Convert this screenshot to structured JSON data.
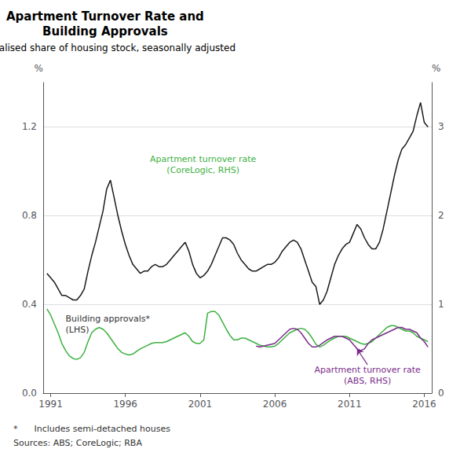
{
  "chart_data": {
    "type": "line",
    "title": "Apartment Turnover Rate and\nBuilding Approvals",
    "subtitle": "Annualised share of housing stock, seasonally adjusted",
    "footnote": "*      Includes semi-detached houses",
    "sources": "Sources: ABS; CoreLogic; RBA",
    "y_label": "%",
    "y2_label": "%",
    "xlim": [
      1990.5,
      2016.5
    ],
    "xticks": [
      1991,
      1996,
      2001,
      2006,
      2011,
      2016
    ],
    "ylim": [
      0.0,
      1.4
    ],
    "yticks": [
      {
        "value": 0.0,
        "label": "0.0"
      },
      0.4,
      0.8,
      1.2
    ],
    "y2lim": [
      0,
      3.5
    ],
    "y2ticks": [
      0,
      1,
      2,
      3
    ],
    "grid": true,
    "series": [
      {
        "color": "#1a1a1a",
        "axis": "y",
        "x": [
          1990.75,
          1991.0,
          1991.25,
          1991.5,
          1991.75,
          1992.0,
          1992.25,
          1992.5,
          1992.75,
          1993.0,
          1993.25,
          1993.5,
          1993.75,
          1994.0,
          1994.25,
          1994.5,
          1994.75,
          1995.0,
          1995.25,
          1995.5,
          1995.75,
          1996.0,
          1996.25,
          1996.5,
          1996.75,
          1997.0,
          1997.25,
          1997.5,
          1997.75,
          1998.0,
          1998.25,
          1998.5,
          1998.75,
          1999.0,
          1999.25,
          1999.5,
          1999.75,
          2000.0,
          2000.25,
          2000.5,
          2000.75,
          2001.0,
          2001.25,
          2001.5,
          2001.75,
          2002.0,
          2002.25,
          2002.5,
          2002.75,
          2003.0,
          2003.25,
          2003.5,
          2003.75,
          2004.0,
          2004.25,
          2004.5,
          2004.75,
          2005.0,
          2005.25,
          2005.5,
          2005.75,
          2006.0,
          2006.25,
          2006.5,
          2006.75,
          2007.0,
          2007.25,
          2007.5,
          2007.75,
          2008.0,
          2008.25,
          2008.5,
          2008.75,
          2009.0,
          2009.25,
          2009.5,
          2009.75,
          2010.0,
          2010.25,
          2010.5,
          2010.75,
          2011.0,
          2011.25,
          2011.5,
          2011.75,
          2012.0,
          2012.25,
          2012.5,
          2012.75,
          2013.0,
          2013.25,
          2013.5,
          2013.75,
          2014.0,
          2014.25,
          2014.5,
          2014.75,
          2015.0,
          2015.25,
          2015.5,
          2015.75,
          2016.0,
          2016.25
        ],
        "values": [
          0.54,
          0.52,
          0.5,
          0.47,
          0.44,
          0.44,
          0.43,
          0.42,
          0.42,
          0.44,
          0.47,
          0.55,
          0.62,
          0.68,
          0.75,
          0.82,
          0.92,
          0.96,
          0.88,
          0.8,
          0.73,
          0.67,
          0.62,
          0.58,
          0.56,
          0.54,
          0.55,
          0.55,
          0.57,
          0.58,
          0.57,
          0.57,
          0.58,
          0.6,
          0.62,
          0.64,
          0.66,
          0.68,
          0.64,
          0.58,
          0.54,
          0.52,
          0.53,
          0.55,
          0.58,
          0.62,
          0.66,
          0.7,
          0.7,
          0.69,
          0.67,
          0.63,
          0.6,
          0.58,
          0.56,
          0.55,
          0.55,
          0.56,
          0.57,
          0.58,
          0.58,
          0.59,
          0.61,
          0.64,
          0.66,
          0.68,
          0.69,
          0.68,
          0.65,
          0.6,
          0.55,
          0.5,
          0.48,
          0.4,
          0.42,
          0.46,
          0.52,
          0.58,
          0.62,
          0.65,
          0.67,
          0.68,
          0.72,
          0.76,
          0.74,
          0.7,
          0.67,
          0.65,
          0.65,
          0.68,
          0.74,
          0.82,
          0.9,
          0.98,
          1.05,
          1.1,
          1.12,
          1.15,
          1.18,
          1.25,
          1.31,
          1.22,
          1.2
        ]
      },
      {
        "color": "#3cb040",
        "axis": "y2",
        "x": [
          1990.75,
          1991.0,
          1991.25,
          1991.5,
          1991.75,
          1992.0,
          1992.25,
          1992.5,
          1992.75,
          1993.0,
          1993.25,
          1993.5,
          1993.75,
          1994.0,
          1994.25,
          1994.5,
          1994.75,
          1995.0,
          1995.25,
          1995.5,
          1995.75,
          1996.0,
          1996.25,
          1996.5,
          1996.75,
          1997.0,
          1997.25,
          1997.5,
          1997.75,
          1998.0,
          1998.25,
          1998.5,
          1998.75,
          1999.0,
          1999.25,
          1999.5,
          1999.75,
          2000.0,
          2000.25,
          2000.5,
          2000.75,
          2001.0,
          2001.25,
          2001.5,
          2001.75,
          2002.0,
          2002.25,
          2002.5,
          2002.75,
          2003.0,
          2003.25,
          2003.5,
          2003.75,
          2004.0,
          2004.25,
          2004.5,
          2004.75,
          2005.0,
          2005.25,
          2005.5,
          2005.75,
          2006.0,
          2006.25,
          2006.5,
          2006.75,
          2007.0,
          2007.25,
          2007.5,
          2007.75,
          2008.0,
          2008.25,
          2008.5,
          2008.75,
          2009.0,
          2009.25,
          2009.5,
          2009.75,
          2010.0,
          2010.25,
          2010.5,
          2010.75,
          2011.0,
          2011.25,
          2011.5,
          2011.75,
          2012.0,
          2012.25,
          2012.5,
          2012.75,
          2013.0,
          2013.25,
          2013.5,
          2013.75,
          2014.0,
          2014.25,
          2014.5,
          2014.75,
          2015.0,
          2015.25,
          2015.5,
          2015.75,
          2016.0,
          2016.25
        ],
        "values": [
          0.95,
          0.88,
          0.78,
          0.68,
          0.56,
          0.48,
          0.42,
          0.39,
          0.38,
          0.4,
          0.46,
          0.58,
          0.68,
          0.72,
          0.74,
          0.72,
          0.68,
          0.62,
          0.56,
          0.5,
          0.46,
          0.44,
          0.43,
          0.44,
          0.47,
          0.5,
          0.52,
          0.54,
          0.56,
          0.57,
          0.57,
          0.57,
          0.58,
          0.6,
          0.62,
          0.64,
          0.66,
          0.68,
          0.64,
          0.58,
          0.56,
          0.56,
          0.6,
          0.9,
          0.92,
          0.92,
          0.88,
          0.8,
          0.72,
          0.65,
          0.6,
          0.6,
          0.62,
          0.62,
          0.6,
          0.58,
          0.56,
          0.54,
          0.53,
          0.52,
          0.52,
          0.53,
          0.56,
          0.6,
          0.64,
          0.68,
          0.7,
          0.72,
          0.73,
          0.72,
          0.68,
          0.62,
          0.55,
          0.52,
          0.54,
          0.57,
          0.6,
          0.62,
          0.64,
          0.64,
          0.64,
          0.62,
          0.6,
          0.58,
          0.56,
          0.55,
          0.56,
          0.58,
          0.62,
          0.66,
          0.7,
          0.74,
          0.76,
          0.76,
          0.74,
          0.72,
          0.7,
          0.7,
          0.68,
          0.64,
          0.62,
          0.6,
          0.58
        ]
      },
      {
        "color": "#7b2d8b",
        "axis": "y2",
        "x": [
          2004.75,
          2005.0,
          2005.25,
          2005.5,
          2005.75,
          2006.0,
          2006.25,
          2006.5,
          2006.75,
          2007.0,
          2007.25,
          2007.5,
          2007.75,
          2008.0,
          2008.25,
          2008.5,
          2008.75,
          2009.0,
          2009.25,
          2009.5,
          2009.75,
          2010.0,
          2010.25,
          2010.5,
          2010.75,
          2011.0,
          2011.25,
          2011.5,
          2011.75,
          2012.0,
          2012.25,
          2012.5,
          2012.75,
          2013.0,
          2013.25,
          2013.5,
          2013.75,
          2014.0,
          2014.25,
          2014.5,
          2014.75,
          2015.0,
          2015.25,
          2015.5,
          2015.75,
          2016.0,
          2016.25
        ],
        "values": [
          0.53,
          0.52,
          0.53,
          0.54,
          0.55,
          0.56,
          0.6,
          0.64,
          0.68,
          0.72,
          0.73,
          0.72,
          0.68,
          0.62,
          0.56,
          0.52,
          0.52,
          0.54,
          0.57,
          0.6,
          0.62,
          0.64,
          0.64,
          0.64,
          0.62,
          0.6,
          0.55,
          0.5,
          0.48,
          0.5,
          0.56,
          0.6,
          0.62,
          0.64,
          0.66,
          0.68,
          0.7,
          0.72,
          0.74,
          0.74,
          0.72,
          0.72,
          0.7,
          0.68,
          0.62,
          0.58,
          0.52
        ]
      }
    ],
    "annotations": [
      {
        "text": "Apartment turnover rate\n(CoreLogic, RHS)",
        "x": 2001.2,
        "y": 2.45,
        "axis": "y2",
        "color": "#3cb040"
      },
      {
        "text": "Building approvals*\n(LHS)",
        "x": 1992.0,
        "y": 0.26,
        "axis": "y",
        "color": "#333333"
      },
      {
        "text": "Apartment turnover rate\n(ABS, RHS)",
        "x": 2012.2,
        "y": 0.32,
        "axis": "y2",
        "color": "#7b2d8b",
        "arrow_x": 2011.5,
        "arrow_y": 0.5
      }
    ]
  }
}
